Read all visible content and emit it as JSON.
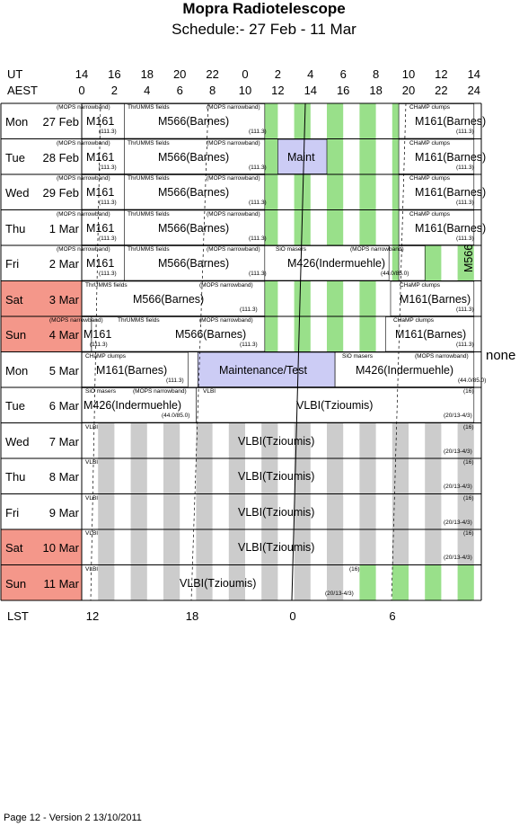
{
  "title": "Mopra Radiotelescope",
  "subtitle": "Schedule:- 27 Feb - 11 Mar",
  "axis": {
    "ut_label": "UT",
    "aest_label": "AEST",
    "lst_label": "LST",
    "ut_ticks": [
      "14",
      "16",
      "18",
      "20",
      "22",
      "0",
      "2",
      "4",
      "6",
      "8",
      "10",
      "12",
      "14"
    ],
    "aest_ticks": [
      "0",
      "2",
      "4",
      "6",
      "8",
      "10",
      "12",
      "14",
      "16",
      "18",
      "20",
      "22",
      "24"
    ],
    "lst_ticks": [
      "12",
      "18",
      "0",
      "6"
    ]
  },
  "days": [
    {
      "day": "Mon",
      "date": "27 Feb",
      "weekend": false
    },
    {
      "day": "Tue",
      "date": "28 Feb",
      "weekend": false
    },
    {
      "day": "Wed",
      "date": "29 Feb",
      "weekend": false
    },
    {
      "day": "Thu",
      "date": "1 Mar",
      "weekend": false
    },
    {
      "day": "Fri",
      "date": "2 Mar",
      "weekend": false
    },
    {
      "day": "Sat",
      "date": "3 Mar",
      "weekend": true
    },
    {
      "day": "Sun",
      "date": "4 Mar",
      "weekend": true
    },
    {
      "day": "Mon",
      "date": "5 Mar",
      "weekend": false
    },
    {
      "day": "Tue",
      "date": "6 Mar",
      "weekend": false
    },
    {
      "day": "Wed",
      "date": "7 Mar",
      "weekend": false
    },
    {
      "day": "Thu",
      "date": "8 Mar",
      "weekend": false
    },
    {
      "day": "Fri",
      "date": "9 Mar",
      "weekend": false
    },
    {
      "day": "Sat",
      "date": "10 Mar",
      "weekend": true
    },
    {
      "day": "Sun",
      "date": "11 Mar",
      "weekend": true
    }
  ],
  "texts": {
    "mops": "(MOPS narrowband)",
    "thrumms": "ThrUMMS fields",
    "champ": "CHaMP clumps",
    "sio": "SiO masers",
    "vlbi_small": "VLBI",
    "m161": "M161",
    "m566": "M566(Barnes)",
    "m161b": "M161(Barnes)",
    "m426": "M426(Indermuehle)",
    "maint": "Maint",
    "mainttest": "Maintenance/Test",
    "vlbi": "VLBI(Tzioumis)",
    "m566short": "M566",
    "n1113": "(111.3)",
    "n440": "(44.0/85.0)",
    "n16": "(16)",
    "n20": "(20/13-4/3)",
    "none": "none"
  },
  "colors": {
    "weekend": "#f4978a",
    "green": "#99e08a",
    "gray": "#cccccc",
    "maint": "#ccccf5"
  },
  "footer": "Page 12 - Version 2  13/10/2011"
}
